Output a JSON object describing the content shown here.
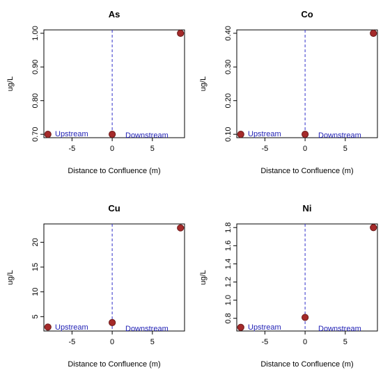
{
  "colors": {
    "point_fill": "#a52a2a",
    "point_stroke": "#6b1a1a",
    "confluence_line": "#3030c8",
    "annotation_text": "#1f1fb4",
    "axis": "#000000"
  },
  "annotations": {
    "upstream": "Upstream",
    "downstream": "Downstream"
  },
  "chart_data": [
    {
      "type": "scatter",
      "title": "As",
      "xlabel": "Distance to Confluence (m)",
      "ylabel": "ug/L",
      "x": [
        -8,
        0,
        8.5
      ],
      "y": [
        0.7,
        0.7,
        1.0
      ],
      "xlim": [
        -8.5,
        9
      ],
      "ylim": [
        0.69,
        1.01
      ],
      "xticks": [
        -5,
        0,
        5
      ],
      "xtick_labels": [
        "-5",
        "0",
        "5"
      ],
      "yticks": [
        0.7,
        0.8,
        0.9,
        1.0
      ],
      "ytick_labels": [
        "0.70",
        "0.80",
        "0.90",
        "1.00"
      ],
      "vline_x": 0,
      "vline_style": "dashed",
      "grid": false
    },
    {
      "type": "scatter",
      "title": "Co",
      "xlabel": "Distance to Confluence (m)",
      "ylabel": "ug/L",
      "x": [
        -8,
        0,
        8.5
      ],
      "y": [
        0.1,
        0.1,
        0.4
      ],
      "xlim": [
        -8.5,
        9
      ],
      "ylim": [
        0.09,
        0.41
      ],
      "xticks": [
        -5,
        0,
        5
      ],
      "xtick_labels": [
        "-5",
        "0",
        "5"
      ],
      "yticks": [
        0.1,
        0.2,
        0.3,
        0.4
      ],
      "ytick_labels": [
        "0.10",
        "0.20",
        "0.30",
        "0.40"
      ],
      "vline_x": 0,
      "vline_style": "dashed",
      "grid": false
    },
    {
      "type": "scatter",
      "title": "Cu",
      "xlabel": "Distance to Confluence (m)",
      "ylabel": "ug/L",
      "x": [
        -8,
        0,
        8.5
      ],
      "y": [
        2.9,
        3.8,
        22.9
      ],
      "xlim": [
        -8.5,
        9
      ],
      "ylim": [
        2.1,
        23.7
      ],
      "xticks": [
        -5,
        0,
        5
      ],
      "xtick_labels": [
        "-5",
        "0",
        "5"
      ],
      "yticks": [
        5,
        10,
        15,
        20
      ],
      "ytick_labels": [
        "5",
        "10",
        "15",
        "20"
      ],
      "vline_x": 0,
      "vline_style": "dashed",
      "grid": false
    },
    {
      "type": "scatter",
      "title": "Ni",
      "xlabel": "Distance to Confluence (m)",
      "ylabel": "ug/L",
      "x": [
        -8,
        0,
        8.5
      ],
      "y": [
        0.7,
        0.81,
        1.8
      ],
      "xlim": [
        -8.5,
        9
      ],
      "ylim": [
        0.66,
        1.84
      ],
      "xticks": [
        -5,
        0,
        5
      ],
      "xtick_labels": [
        "-5",
        "0",
        "5"
      ],
      "yticks": [
        0.8,
        1.0,
        1.2,
        1.4,
        1.6,
        1.8
      ],
      "ytick_labels": [
        "0.8",
        "1.0",
        "1.2",
        "1.4",
        "1.6",
        "1.8"
      ],
      "vline_x": 0,
      "vline_style": "dashed",
      "grid": false
    }
  ]
}
